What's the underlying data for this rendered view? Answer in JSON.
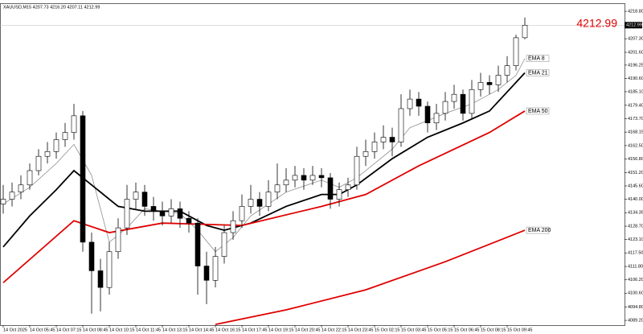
{
  "chart_data": {
    "type": "candlestick",
    "title": "XAUUSD,M15  4207.73 4216.20 4207.11 4212.99",
    "current_price": "4212.99",
    "categories": [
      "14 Oct 2025",
      null,
      null,
      "14 Oct 05:45",
      null,
      null,
      "14 Oct 07:15",
      null,
      null,
      "14 Oct 08:45",
      null,
      null,
      "14 Oct 10:15",
      null,
      null,
      "14 Oct 11:45",
      null,
      null,
      "14 Oct 13:15",
      null,
      null,
      "14 Oct 14:45",
      null,
      null,
      "14 Oct 16:15",
      null,
      null,
      "14 Oct 17:45",
      null,
      null,
      "14 Oct 19:15",
      null,
      null,
      "14 Oct 20:45",
      null,
      null,
      "14 Oct 22:15",
      null,
      null,
      "14 Oct 23:45",
      null,
      null,
      "15 Oct 02:15",
      null,
      null,
      "15 Oct 03:45",
      null,
      null,
      "15 Oct 05:15",
      null,
      null,
      "15 Oct 06:45",
      null,
      null,
      "15 Oct 08:15",
      null,
      null,
      "15 Oct 09:45",
      null,
      null
    ],
    "open": [
      4138,
      4140,
      4143,
      4146,
      4152,
      4158,
      4160,
      4165,
      4168,
      4175,
      4122,
      4110,
      4103,
      4118,
      4128,
      4140,
      4143,
      4137,
      4135,
      4133,
      4136,
      4132,
      4130,
      4112,
      4106,
      4116,
      4126,
      4131,
      4137,
      4140,
      4137,
      4143,
      4146,
      4148,
      4150,
      4148,
      4150,
      4149,
      4140,
      4144,
      4146,
      4158,
      4160,
      4164,
      4166,
      4164,
      4178,
      4182,
      4179,
      4172,
      4176,
      4181,
      4184,
      4176,
      4186,
      4189,
      4188,
      4192,
      4196,
      4207.73
    ],
    "high": [
      4146,
      4147,
      4150,
      4155,
      4161,
      4164,
      4168,
      4172,
      4180,
      4177,
      4126,
      4115,
      4122,
      4132,
      4146,
      4147,
      4146,
      4141,
      4139,
      4140,
      4139,
      4135,
      4132,
      4118,
      4120,
      4129,
      4135,
      4142,
      4146,
      4143,
      4148,
      4155,
      4153,
      4154,
      4153,
      4154,
      4153,
      4151,
      4147,
      4149,
      4162,
      4165,
      4168,
      4171,
      4170,
      4184,
      4186,
      4185,
      4181,
      4180,
      4185,
      4188,
      4186,
      4190,
      4193,
      4192,
      4196,
      4200,
      4209,
      4216.2
    ],
    "low": [
      4134,
      4137,
      4140,
      4144,
      4150,
      4155,
      4157,
      4162,
      4165,
      4118,
      4092,
      4093,
      4100,
      4115,
      4125,
      4136,
      4133,
      4131,
      4129,
      4130,
      4128,
      4126,
      4100,
      4096,
      4103,
      4113,
      4123,
      4128,
      4134,
      4133,
      4135,
      4140,
      4143,
      4145,
      4144,
      4146,
      4145,
      4136,
      4137,
      4141,
      4144,
      4154,
      4157,
      4161,
      4158,
      4162,
      4175,
      4175,
      4168,
      4169,
      4173,
      4178,
      4173,
      4174,
      4183,
      4184,
      4185,
      4189,
      4194,
      4207.11
    ],
    "close": [
      4140,
      4143,
      4146,
      4152,
      4158,
      4160,
      4165,
      4168,
      4175,
      4122,
      4110,
      4103,
      4118,
      4128,
      4140,
      4143,
      4137,
      4135,
      4133,
      4136,
      4132,
      4130,
      4112,
      4106,
      4116,
      4126,
      4131,
      4137,
      4140,
      4137,
      4143,
      4146,
      4148,
      4150,
      4148,
      4150,
      4149,
      4140,
      4144,
      4146,
      4158,
      4160,
      4164,
      4166,
      4164,
      4178,
      4182,
      4179,
      4172,
      4176,
      4181,
      4184,
      4176,
      4186,
      4189,
      4188,
      4192,
      4196,
      4207.73,
      4212.99
    ],
    "series": [
      {
        "name": "EMA 8",
        "color": "#808080",
        "x": [
          0,
          3,
          6,
          8,
          10,
          12,
          14,
          16,
          20,
          22,
          24,
          26,
          28,
          32,
          36,
          38,
          40,
          44,
          46,
          50,
          53,
          56,
          58,
          59
        ],
        "values": [
          4138,
          4145,
          4155,
          4163,
          4150,
          4122,
          4128,
          4136,
          4134,
          4127,
          4118,
          4124,
          4133,
          4143,
          4148,
          4145,
          4149,
          4161,
          4170,
          4176,
          4180,
          4186,
          4192,
          4199
        ]
      },
      {
        "name": "EMA 21",
        "color": "#000000",
        "x": [
          0,
          3,
          6,
          8,
          10,
          13,
          16,
          20,
          23,
          25,
          28,
          32,
          36,
          38,
          40,
          44,
          48,
          52,
          55,
          59
        ],
        "values": [
          4120,
          4133,
          4144,
          4152,
          4146,
          4137,
          4135,
          4135,
          4129,
          4127,
          4130,
          4137,
          4142,
          4142,
          4146,
          4157,
          4166,
          4172,
          4177,
          4193
        ]
      },
      {
        "name": "EMA 50",
        "color": "#e00000",
        "x": [
          0,
          8,
          12,
          18,
          27,
          36,
          41,
          47,
          55,
          59
        ],
        "values": [
          4105,
          4131,
          4126,
          4130,
          4129,
          4137,
          4142,
          4154,
          4168,
          4177
        ]
      },
      {
        "name": "EMA 200",
        "color": "#e00000",
        "x": [
          24,
          32,
          41,
          50,
          59
        ],
        "values": [
          4087.5,
          4093.6,
          4102,
          4113.8,
          4127
        ]
      }
    ],
    "ylim": [
      4087.2,
      4222.2
    ],
    "yticks": [
      {
        "value": 4218.8,
        "label": "4218.80"
      },
      {
        "value": 4207.3,
        "label": "4207.30"
      },
      {
        "value": 4201.6,
        "label": "4201.60"
      },
      {
        "value": 4196.25,
        "label": "4196.25"
      },
      {
        "value": 4190.6,
        "label": "4190.60"
      },
      {
        "value": 4185.1,
        "label": "4185.10"
      },
      {
        "value": 4179.4,
        "label": "4179.40"
      },
      {
        "value": 4173.7,
        "label": "4173.70"
      },
      {
        "value": 4168.15,
        "label": "4168.15"
      },
      {
        "value": 4162.5,
        "label": "4162.50"
      },
      {
        "value": 4156.8,
        "label": "4156.80"
      },
      {
        "value": 4151.2,
        "label": "4151.20"
      },
      {
        "value": 4145.6,
        "label": "4145.60"
      },
      {
        "value": 4140,
        "label": "4140.00"
      },
      {
        "value": 4134.35,
        "label": "4134.35"
      },
      {
        "value": 4128.7,
        "label": "4128.70"
      },
      {
        "value": 4123.1,
        "label": "4123.10"
      },
      {
        "value": 4117.5,
        "label": "4117.50"
      },
      {
        "value": 4111.8,
        "label": "4111.80"
      },
      {
        "value": 4106.2,
        "label": "4106.20"
      },
      {
        "value": 4100.6,
        "label": "4100.60"
      },
      {
        "value": 4094.8,
        "label": "4094.80"
      },
      {
        "value": 4089.2,
        "label": "4089.20"
      }
    ]
  }
}
